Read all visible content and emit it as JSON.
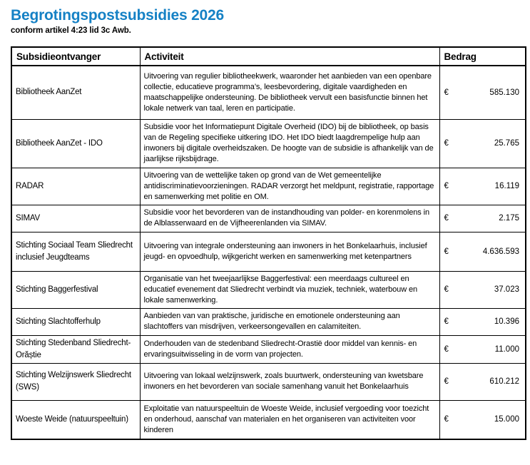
{
  "page": {
    "title": "Begrotingspostsubsidies 2026",
    "subtitle": "conform artikel 4:23 lid 3c Awb."
  },
  "colors": {
    "title_blue": "#1581C5",
    "border": "#000000",
    "text": "#000000",
    "background": "#FFFFFF"
  },
  "table": {
    "currency_symbol": "€",
    "headers": {
      "recipient": "Subsidieontvanger",
      "activity": "Activiteit",
      "amount": "Bedrag"
    },
    "rows": [
      {
        "recipient": "Bibliotheek AanZet",
        "activity": "Uitvoering van regulier bibliotheekwerk, waaronder het aanbieden van een openbare collectie, educatieve programma’s, leesbevordering, digitale vaardigheden en maatschappelijke ondersteuning. De bibliotheek vervult een basisfunctie binnen het lokale netwerk van taal, leren en participatie.",
        "amount": "585.130"
      },
      {
        "recipient": "Bibliotheek AanZet - IDO",
        "activity": "Subsidie voor het Informatiepunt Digitale Overheid (IDO) bij de bibliotheek, op basis van de Regeling specifieke uitkering IDO. Het IDO biedt laagdrempelige hulp aan inwoners bij digitale overheidszaken. De hoogte van de subsidie is afhankelijk van de jaarlijkse rijksbijdrage.",
        "amount": "25.765"
      },
      {
        "recipient": "RADAR",
        "activity": "Uitvoering van de wettelijke taken op grond van de Wet gemeentelijke antidiscriminatievoorzieningen. RADAR verzorgt het meldpunt, registratie, rapportage en samenwerking met politie en OM.",
        "amount": "16.119"
      },
      {
        "recipient": "SIMAV",
        "activity": "Subsidie voor het bevorderen van de instandhouding van polder- en korenmolens in de Alblasserwaard en de Vijfheerenlanden via SIMAV.",
        "amount": "2.175"
      },
      {
        "recipient": "Stichting Sociaal Team Sliedrecht inclusief Jeugdteams",
        "activity": "Uitvoering van integrale ondersteuning aan inwoners in het Bonkelaarhuis, inclusief jeugd- en opvoedhulp, wijkgericht werken en samenwerking met ketenpartners",
        "amount": "4.636.593"
      },
      {
        "recipient": "Stichting Baggerfestival",
        "activity": "Organisatie van het tweejaarlijkse Baggerfestival: een meerdaags cultureel en educatief evenement dat Sliedrecht verbindt via muziek, techniek, waterbouw en lokale samenwerking.",
        "amount": "37.023"
      },
      {
        "recipient": "Stichting Slachtofferhulp",
        "activity": "Aanbieden van van praktische, juridische en emotionele ondersteuning aan slachtoffers van misdrijven, verkeersongevallen en calamiteiten.",
        "amount": "10.396"
      },
      {
        "recipient": "Stichting Stedenband Sliedrecht- Orăștie",
        "activity": "Onderhouden van de stedenband Sliedrecht-Orastië door middel van kennis- en ervaringsuitwisseling in de vorm van projecten.",
        "amount": "11.000"
      },
      {
        "recipient": "Stichting Welzijnswerk Sliedrecht (SWS)",
        "activity": "Uitvoering van lokaal welzijnswerk, zoals buurtwerk, ondersteuning van kwetsbare inwoners en het bevorderen van sociale samenhang vanuit het Bonkelaarhuis",
        "amount": "610.212"
      },
      {
        "recipient": "Woeste Weide (natuurspeeltuin)",
        "activity": "Exploitatie van natuurspeeltuin de Woeste Weide, inclusief vergoeding voor toezicht en onderhoud, aanschaf van materialen en het organiseren van activiteiten voor kinderen",
        "amount": "15.000"
      }
    ]
  }
}
